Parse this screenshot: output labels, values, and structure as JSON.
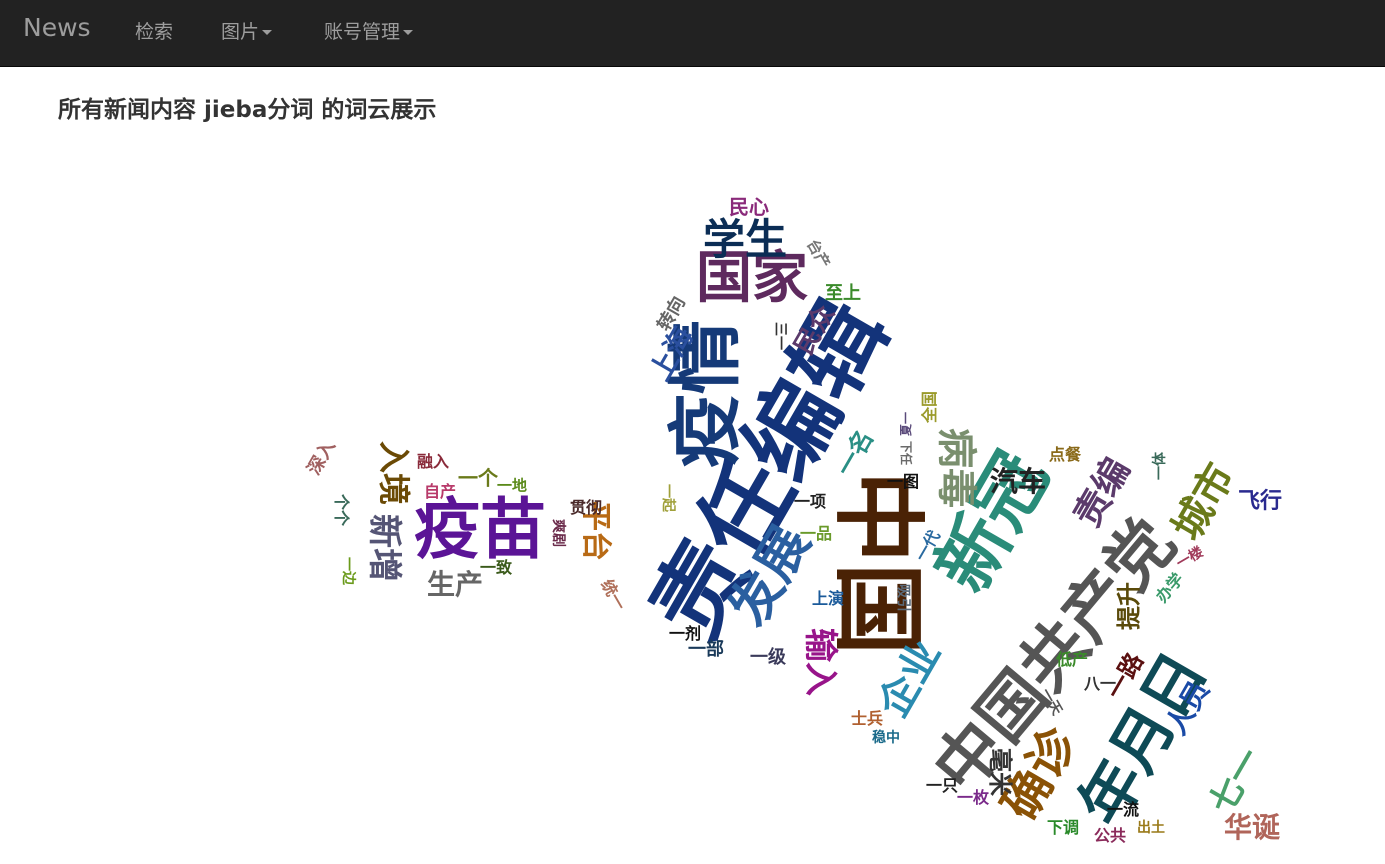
{
  "navbar": {
    "brand": "News",
    "items": [
      {
        "label": "检索",
        "dropdown": false,
        "icon": null
      },
      {
        "label": "图片",
        "dropdown": true,
        "icon": "caret-down-icon"
      },
      {
        "label": "账号管理",
        "dropdown": true,
        "icon": "caret-down-icon"
      }
    ],
    "background": "#222222",
    "text_color": "#9d9d9d"
  },
  "page": {
    "title": "所有新闻内容 jieba分词 的词云展示"
  },
  "wordcloud": {
    "words": [
      {
        "text": "责任编辑",
        "color": "#13337a"
      },
      {
        "text": "中国",
        "color": "#4a2205"
      },
      {
        "text": "疫情",
        "color": "#153a78"
      },
      {
        "text": "疫苗",
        "color": "#5b1496"
      },
      {
        "text": "新冠",
        "color": "#2a8c79"
      },
      {
        "text": "中国共产党",
        "color": "#555555"
      },
      {
        "text": "年月日",
        "color": "#0e4a56"
      },
      {
        "text": "国家",
        "color": "#5e2a5e"
      },
      {
        "text": "发展",
        "color": "#2a5fa0"
      },
      {
        "text": "病毒",
        "color": "#7a8f6e"
      },
      {
        "text": "学生",
        "color": "#0b2d55"
      },
      {
        "text": "确诊",
        "color": "#8a5206"
      },
      {
        "text": "企业",
        "color": "#2a8bb0"
      },
      {
        "text": "城市",
        "color": "#6a7a1a"
      },
      {
        "text": "责编",
        "color": "#5b3a6b"
      },
      {
        "text": "新增",
        "color": "#555575"
      },
      {
        "text": "输入",
        "color": "#98148a"
      },
      {
        "text": "七一",
        "color": "#4aa06a"
      },
      {
        "text": "汽车",
        "color": "#222222"
      },
      {
        "text": "入境",
        "color": "#6b4a05"
      },
      {
        "text": "生产",
        "color": "#666666"
      },
      {
        "text": "平台",
        "color": "#b86a15"
      },
      {
        "text": "华诞",
        "color": "#b0655a"
      },
      {
        "text": "上海",
        "color": "#2a4f9e"
      },
      {
        "text": "人员",
        "color": "#1a4aa6"
      },
      {
        "text": "一名",
        "color": "#2a8f85"
      },
      {
        "text": "提升",
        "color": "#5a4a0a"
      },
      {
        "text": "民众",
        "color": "#5b3a6b"
      },
      {
        "text": "一路",
        "color": "#5a1010"
      },
      {
        "text": "飞行",
        "color": "#2a2a8f"
      },
      {
        "text": "毫米",
        "color": "#333333"
      },
      {
        "text": "民心",
        "color": "#8a2a7a"
      },
      {
        "text": "转向",
        "color": "#666666"
      },
      {
        "text": "至上",
        "color": "#3a8a2a"
      },
      {
        "text": "台产",
        "color": "#777777"
      },
      {
        "text": "深入",
        "color": "#a06060"
      },
      {
        "text": "融入",
        "color": "#8a2a3a"
      },
      {
        "text": "一个",
        "color": "#6a7a1a"
      },
      {
        "text": "个个",
        "color": "#3a6a5a"
      },
      {
        "text": "一地",
        "color": "#5a8a1a"
      },
      {
        "text": "自产",
        "color": "#b83a6a"
      },
      {
        "text": "贯彻",
        "color": "#4a2a2a"
      },
      {
        "text": "爽剧",
        "color": "#6a2a4a"
      },
      {
        "text": "一边",
        "color": "#6a9a1a"
      },
      {
        "text": "一致",
        "color": "#3a5a1a"
      },
      {
        "text": "统一",
        "color": "#b0705a"
      },
      {
        "text": "一起",
        "color": "#a0a03a"
      },
      {
        "text": "一项",
        "color": "#222222"
      },
      {
        "text": "一品",
        "color": "#6a9a2a"
      },
      {
        "text": "一图",
        "color": "#111111"
      },
      {
        "text": "一代",
        "color": "#2a6aa0"
      },
      {
        "text": "吸引",
        "color": "#5a6a7a"
      },
      {
        "text": "上演",
        "color": "#1a5a9a"
      },
      {
        "text": "一剂",
        "color": "#111111"
      },
      {
        "text": "一部",
        "color": "#1a3a5a"
      },
      {
        "text": "一级",
        "color": "#3a3a5a"
      },
      {
        "text": "点餐",
        "color": "#8a6a1a"
      },
      {
        "text": "一体",
        "color": "#3a6a5a"
      },
      {
        "text": "一楼",
        "color": "#a03a5a"
      },
      {
        "text": "办学",
        "color": "#3a9a6a"
      },
      {
        "text": "低产",
        "color": "#3a8a2a"
      },
      {
        "text": "八一",
        "color": "#333333"
      },
      {
        "text": "一天",
        "color": "#555555"
      },
      {
        "text": "士兵",
        "color": "#b06030"
      },
      {
        "text": "稳中",
        "color": "#1a6a8a"
      },
      {
        "text": "一只",
        "color": "#222222"
      },
      {
        "text": "一枚",
        "color": "#7a2a8a"
      },
      {
        "text": "一流",
        "color": "#111111"
      },
      {
        "text": "下调",
        "color": "#2a8a2a"
      },
      {
        "text": "公共",
        "color": "#8a2a5a"
      },
      {
        "text": "出土",
        "color": "#9a7a1a"
      },
      {
        "text": "全国",
        "color": "#9a9a2a"
      },
      {
        "text": "三一",
        "color": "#333333"
      },
      {
        "text": "下任",
        "color": "#6a6a6a"
      },
      {
        "text": "夏一",
        "color": "#5a4a7a"
      }
    ]
  }
}
